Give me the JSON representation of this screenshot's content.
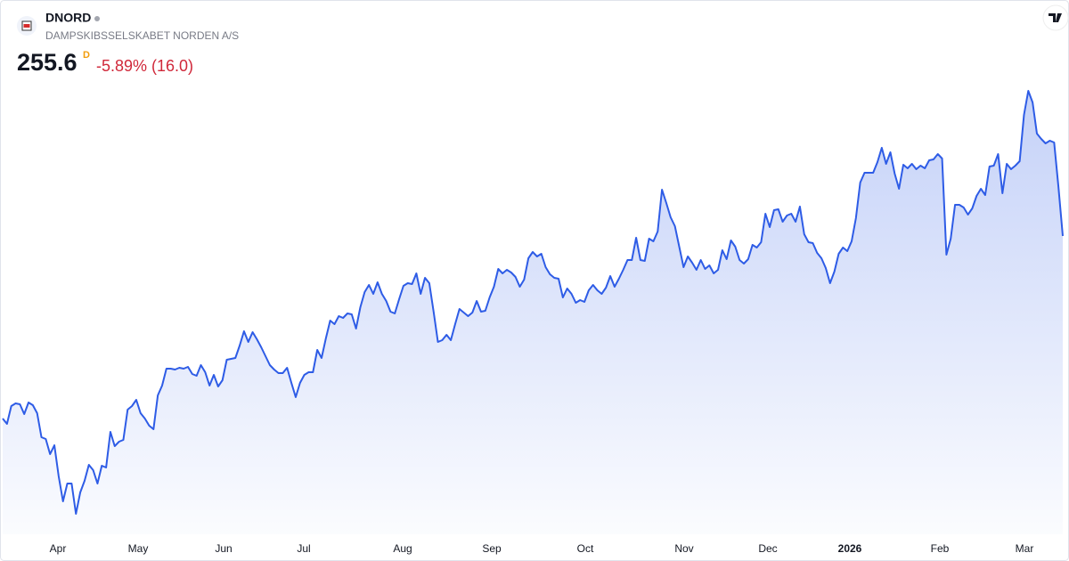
{
  "chart_data": {
    "type": "area",
    "symbol": "DNORD",
    "company": "DAMPSKIBSSELSKABET NORDEN A/S",
    "price": "255.6",
    "badge": "D",
    "change": "-5.89% (16.0)",
    "color": "#2e5ce6",
    "x_labels": [
      "Apr",
      "May",
      "Jun",
      "Jul",
      "Aug",
      "Sep",
      "Oct",
      "Nov",
      "Dec",
      "2026",
      "Feb",
      "Mar"
    ],
    "values": [
      214.6,
      213.4,
      217.4,
      218.0,
      217.8,
      215.6,
      218.2,
      217.6,
      215.8,
      210.4,
      210.0,
      206.6,
      208.6,
      201.6,
      196.0,
      200.0,
      200.0,
      193.2,
      198.0,
      200.6,
      204.2,
      203.0,
      200.0,
      204.0,
      203.6,
      211.6,
      208.4,
      209.4,
      209.8,
      216.6,
      217.4,
      218.8,
      215.8,
      214.6,
      213.0,
      212.2,
      219.8,
      222.0,
      225.8,
      225.8,
      225.6,
      226.0,
      225.8,
      226.2,
      224.6,
      224.2,
      226.6,
      225.0,
      222.0,
      224.4,
      221.8,
      223.2,
      227.8,
      228.0,
      228.2,
      231.0,
      234.2,
      231.8,
      234.0,
      232.4,
      230.6,
      228.6,
      226.6,
      225.6,
      224.8,
      224.8,
      226.0,
      222.6,
      219.4,
      222.6,
      224.4,
      225.0,
      225.0,
      230.0,
      228.2,
      232.6,
      236.6,
      235.8,
      237.6,
      237.2,
      238.2,
      238.0,
      234.8,
      239.6,
      243.0,
      244.6,
      242.6,
      245.2,
      242.6,
      241.0,
      238.6,
      238.2,
      241.4,
      244.4,
      245.0,
      244.8,
      247.2,
      242.6,
      246.2,
      245.0,
      238.6,
      231.8,
      232.2,
      233.4,
      232.2,
      235.8,
      239.2,
      238.4,
      237.6,
      238.4,
      241.0,
      238.6,
      238.8,
      241.8,
      244.2,
      248.2,
      247.2,
      248.0,
      247.4,
      246.4,
      244.2,
      245.8,
      250.6,
      252.0,
      251.0,
      251.6,
      248.6,
      247.0,
      246.2,
      246.0,
      241.8,
      243.8,
      242.6,
      240.6,
      241.2,
      240.8,
      243.4,
      244.6,
      243.4,
      242.6,
      244.0,
      246.6,
      244.2,
      246.0,
      248.0,
      250.2,
      250.2,
      255.2,
      250.2,
      250.0,
      255.0,
      254.4,
      256.6,
      266.0,
      263.0,
      259.8,
      257.8,
      253.2,
      248.6,
      251.0,
      249.6,
      248.0,
      250.2,
      248.2,
      249.0,
      247.2,
      248.0,
      252.4,
      250.4,
      254.6,
      253.2,
      250.2,
      249.4,
      250.4,
      253.6,
      253.0,
      254.2,
      260.6,
      257.6,
      261.4,
      261.6,
      258.8,
      260.2,
      260.6,
      258.8,
      262.2,
      256.0,
      254.2,
      254.0,
      251.8,
      250.6,
      248.4,
      245.0,
      247.6,
      251.6,
      253.0,
      252.2,
      254.4,
      259.6,
      267.6,
      269.8,
      269.8,
      269.8,
      272.2,
      275.4,
      271.8,
      274.4,
      269.6,
      266.2,
      271.6,
      270.8,
      271.8,
      270.6,
      271.4,
      270.8,
      272.6,
      272.8,
      274.0,
      273.0,
      251.4,
      255.0,
      262.6,
      262.6,
      262.0,
      260.4,
      261.8,
      264.6,
      266.2,
      264.8,
      271.2,
      271.4,
      274.0,
      265.2,
      271.8,
      270.6,
      271.4,
      272.4,
      282.8,
      288.2,
      285.6,
      278.6,
      277.4,
      276.4,
      277.0,
      276.6,
      266.6,
      255.6
    ]
  }
}
